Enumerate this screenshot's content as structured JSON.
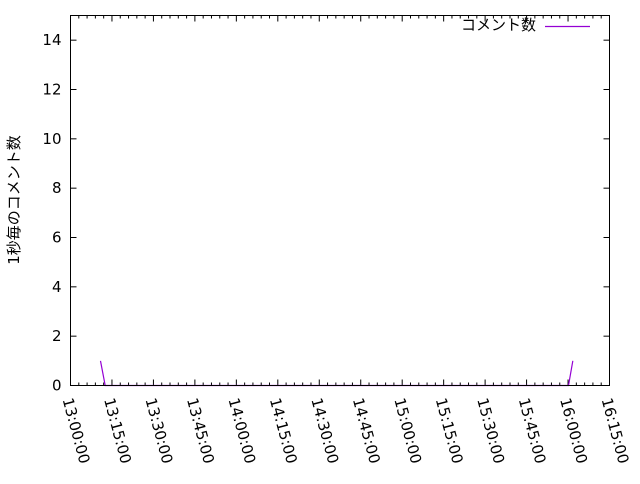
{
  "chart_data": {
    "type": "line",
    "title": "",
    "xlabel": "",
    "ylabel": "1秒毎のコメント数",
    "xlim": [
      "13:00:00",
      "16:15:00"
    ],
    "ylim": [
      0,
      15
    ],
    "x_ticks": [
      "13:00:00",
      "13:15:00",
      "13:30:00",
      "13:45:00",
      "14:00:00",
      "14:15:00",
      "14:30:00",
      "14:45:00",
      "15:00:00",
      "15:15:00",
      "15:30:00",
      "15:45:00",
      "16:00:00",
      "16:15:00"
    ],
    "y_ticks": [
      "0",
      "2",
      "4",
      "6",
      "8",
      "10",
      "12",
      "14"
    ],
    "grid": false,
    "legend_position": "top-right",
    "series": [
      {
        "name": "コメント数",
        "color": "#9400d3",
        "x": [
          "13:10:51",
          "13:12:33",
          "16:00:10",
          "16:01:44"
        ],
        "values": [
          1,
          0,
          0,
          1
        ]
      }
    ]
  }
}
